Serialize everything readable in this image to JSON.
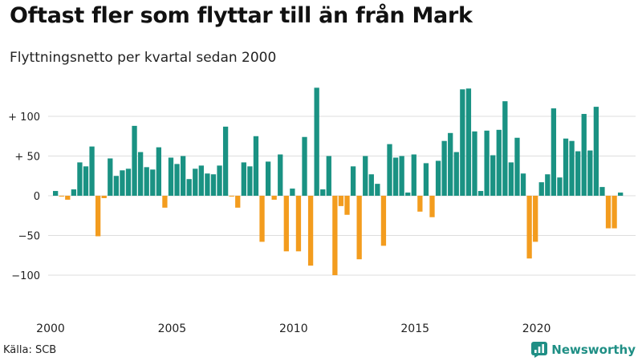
{
  "title": "Oftast fler som flyttar till än från Mark",
  "subtitle": "Flyttningsnetto per kvartal sedan 2000",
  "source": "Källa: SCB",
  "brand": {
    "name": "Newsworthy",
    "icon": "newsworthy-logo-icon",
    "color": "#1f8f85"
  },
  "colors": {
    "positive": "#1a9283",
    "negative": "#f39c1e",
    "grid": "#dddddd"
  },
  "chart_data": {
    "type": "bar",
    "x_start": "2000 Q1",
    "x_ticks": [
      "2000",
      "2005",
      "2010",
      "2015",
      "2020"
    ],
    "y_ticks": [
      "+ 100",
      "+  50",
      "0",
      "−50",
      "−100"
    ],
    "y_tick_values": [
      100,
      50,
      0,
      -50,
      -100
    ],
    "ylim": [
      -110,
      140
    ],
    "grid": true,
    "values": [
      6,
      -1,
      -5,
      8,
      42,
      37,
      62,
      -51,
      -3,
      47,
      25,
      32,
      34,
      88,
      55,
      36,
      33,
      61,
      -15,
      48,
      40,
      50,
      21,
      34,
      38,
      28,
      27,
      38,
      87,
      -1,
      -15,
      42,
      37,
      75,
      -58,
      43,
      -5,
      52,
      -70,
      9,
      -70,
      74,
      -88,
      136,
      8,
      50,
      -100,
      -13,
      -24,
      37,
      -80,
      50,
      27,
      15,
      -63,
      65,
      48,
      50,
      4,
      52,
      -20,
      41,
      -27,
      44,
      69,
      79,
      55,
      134,
      135,
      81,
      6,
      82,
      51,
      83,
      119,
      42,
      73,
      28,
      -79,
      -58,
      17,
      27,
      110,
      23,
      72,
      69,
      56,
      103,
      57,
      112,
      11,
      -41,
      -41,
      4
    ]
  }
}
